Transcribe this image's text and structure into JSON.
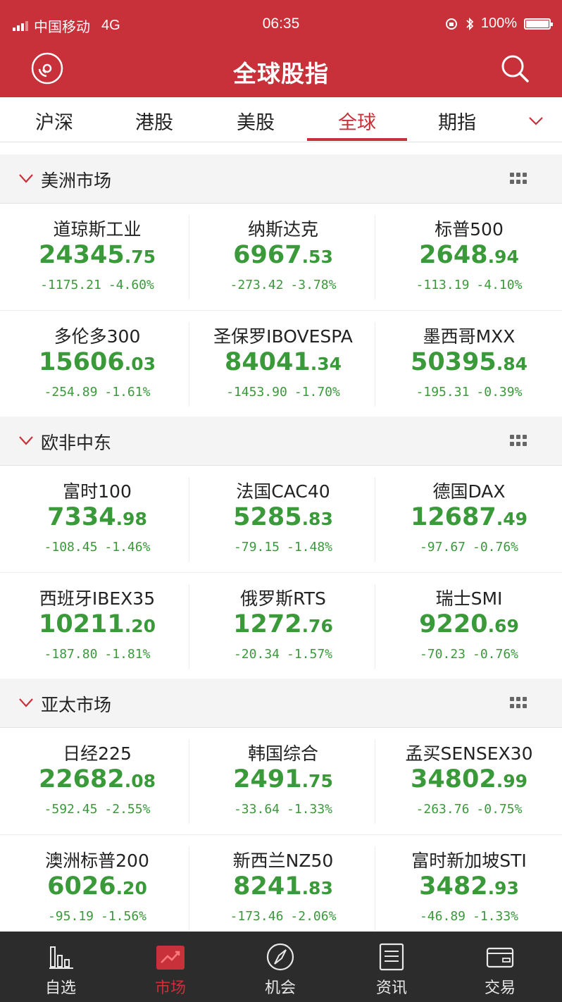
{
  "status_bar": {
    "carrier": "中国移动",
    "network": "4G",
    "time": "06:35",
    "battery": "100%"
  },
  "nav": {
    "title": "全球股指",
    "left_icon": "disc-icon",
    "right_icon": "search-icon"
  },
  "tabs": [
    {
      "label": "沪深",
      "active": false
    },
    {
      "label": "港股",
      "active": false
    },
    {
      "label": "美股",
      "active": false
    },
    {
      "label": "全球",
      "active": true
    },
    {
      "label": "期指",
      "active": false
    }
  ],
  "colors": {
    "brand": "#c8313a",
    "down_green": "#3a9a3a",
    "tab_bar_bg": "#2c2c2c"
  },
  "sections": [
    {
      "title": "美洲市场",
      "items": [
        {
          "name": "道琼斯工业",
          "price_int": "24345",
          "price_dec": ".75",
          "change": "-1175.21",
          "pct": "-4.60%"
        },
        {
          "name": "纳斯达克",
          "price_int": "6967",
          "price_dec": ".53",
          "change": "-273.42",
          "pct": "-3.78%"
        },
        {
          "name": "标普500",
          "price_int": "2648",
          "price_dec": ".94",
          "change": "-113.19",
          "pct": "-4.10%"
        },
        {
          "name": "多伦多300",
          "price_int": "15606",
          "price_dec": ".03",
          "change": "-254.89",
          "pct": "-1.61%"
        },
        {
          "name": "圣保罗IBOVESPA",
          "price_int": "84041",
          "price_dec": ".34",
          "change": "-1453.90",
          "pct": "-1.70%"
        },
        {
          "name": "墨西哥MXX",
          "price_int": "50395",
          "price_dec": ".84",
          "change": "-195.31",
          "pct": "-0.39%"
        }
      ]
    },
    {
      "title": "欧非中东",
      "items": [
        {
          "name": "富时100",
          "price_int": "7334",
          "price_dec": ".98",
          "change": "-108.45",
          "pct": "-1.46%"
        },
        {
          "name": "法国CAC40",
          "price_int": "5285",
          "price_dec": ".83",
          "change": "-79.15",
          "pct": "-1.48%"
        },
        {
          "name": "德国DAX",
          "price_int": "12687",
          "price_dec": ".49",
          "change": "-97.67",
          "pct": "-0.76%"
        },
        {
          "name": "西班牙IBEX35",
          "price_int": "10211",
          "price_dec": ".20",
          "change": "-187.80",
          "pct": "-1.81%"
        },
        {
          "name": "俄罗斯RTS",
          "price_int": "1272",
          "price_dec": ".76",
          "change": "-20.34",
          "pct": "-1.57%"
        },
        {
          "name": "瑞士SMI",
          "price_int": "9220",
          "price_dec": ".69",
          "change": "-70.23",
          "pct": "-0.76%"
        }
      ]
    },
    {
      "title": "亚太市场",
      "items": [
        {
          "name": "日经225",
          "price_int": "22682",
          "price_dec": ".08",
          "change": "-592.45",
          "pct": "-2.55%"
        },
        {
          "name": "韩国综合",
          "price_int": "2491",
          "price_dec": ".75",
          "change": "-33.64",
          "pct": "-1.33%"
        },
        {
          "name": "孟买SENSEX30",
          "price_int": "34802",
          "price_dec": ".99",
          "change": "-263.76",
          "pct": "-0.75%"
        },
        {
          "name": "澳洲标普200",
          "price_int": "6026",
          "price_dec": ".20",
          "change": "-95.19",
          "pct": "-1.56%"
        },
        {
          "name": "新西兰NZ50",
          "price_int": "8241",
          "price_dec": ".83",
          "change": "-173.46",
          "pct": "-2.06%"
        },
        {
          "name": "富时新加坡STI",
          "price_int": "3482",
          "price_dec": ".93",
          "change": "-46.89",
          "pct": "-1.33%"
        }
      ]
    }
  ],
  "tab_bar": [
    {
      "label": "自选",
      "icon": "bar-chart-icon",
      "active": false
    },
    {
      "label": "市场",
      "icon": "trend-chart-icon",
      "active": true
    },
    {
      "label": "机会",
      "icon": "compass-icon",
      "active": false
    },
    {
      "label": "资讯",
      "icon": "news-icon",
      "active": false
    },
    {
      "label": "交易",
      "icon": "wallet-icon",
      "active": false
    }
  ]
}
